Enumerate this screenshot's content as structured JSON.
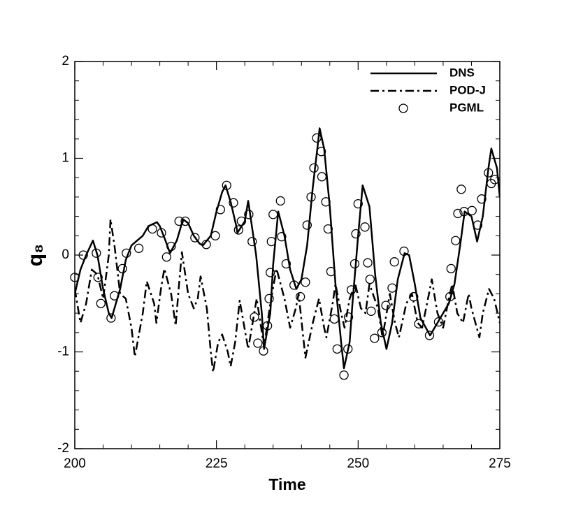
{
  "chart_data": {
    "type": "line",
    "x_label": "Time",
    "y_label": "q₈",
    "xlim": [
      200,
      275
    ],
    "xticks": [
      200,
      225,
      250,
      275
    ],
    "ylim": [
      -2,
      2
    ],
    "yticks": [
      -2,
      -1,
      0,
      1,
      2
    ],
    "legend": "upper right",
    "series": [
      {
        "name": "DNS",
        "color": "#000000",
        "style": "solid",
        "x": [
          200,
          201,
          202,
          203.2,
          204,
          205,
          206,
          206.5,
          208,
          209,
          210,
          211,
          212,
          213,
          214.5,
          215,
          216,
          216.8,
          218,
          219.1,
          220,
          221,
          222,
          222.6,
          224,
          225,
          226,
          226.6,
          227.5,
          228.5,
          228.7,
          230,
          230.6,
          232,
          233,
          233.4,
          234.5,
          235,
          235.9,
          237,
          238,
          239.1,
          240,
          241,
          242,
          243,
          243.2,
          244,
          245,
          246,
          247,
          247.5,
          248.5,
          249,
          250,
          250.8,
          252,
          253,
          254,
          255,
          256,
          257,
          258.2,
          259,
          260,
          261,
          262.7,
          263,
          264,
          265,
          266,
          267,
          268,
          268.8,
          270,
          271,
          272,
          273,
          273.5,
          274.5,
          275
        ],
        "values": [
          -0.4,
          -0.15,
          0.0,
          0.15,
          0.0,
          -0.35,
          -0.6,
          -0.65,
          -0.35,
          -0.05,
          0.1,
          0.15,
          0.2,
          0.3,
          0.34,
          0.3,
          0.15,
          0.02,
          0.15,
          0.37,
          0.33,
          0.2,
          0.12,
          0.1,
          0.2,
          0.45,
          0.65,
          0.72,
          0.55,
          0.3,
          0.23,
          0.35,
          0.56,
          0.0,
          -0.6,
          -0.97,
          -0.6,
          -0.1,
          0.45,
          0.2,
          -0.15,
          -0.35,
          -0.25,
          0.1,
          0.7,
          1.2,
          1.31,
          1.1,
          0.5,
          -0.3,
          -0.9,
          -1.17,
          -0.9,
          -0.5,
          0.2,
          0.72,
          0.5,
          -0.2,
          -0.7,
          -0.97,
          -0.7,
          -0.25,
          0.02,
          0.0,
          -0.3,
          -0.65,
          -0.83,
          -0.8,
          -0.7,
          -0.6,
          -0.5,
          -0.3,
          0.1,
          0.45,
          0.4,
          0.14,
          0.4,
          0.9,
          1.1,
          0.9,
          0.6
        ]
      },
      {
        "name": "POD-J",
        "color": "#000000",
        "style": "dashdot",
        "x": [
          200,
          201,
          202,
          203,
          204,
          205,
          206,
          206.3,
          207,
          208,
          209,
          210,
          210.6,
          212,
          212.7,
          214,
          214.4,
          215.2,
          215.8,
          217,
          217.8,
          218.4,
          218.9,
          220,
          221,
          221.7,
          222.2,
          223.3,
          224,
          224.4,
          225.3,
          226,
          227,
          227.5,
          228.3,
          229.1,
          230.6,
          232.1,
          233.4,
          234.5,
          235.6,
          237,
          238,
          239,
          239.5,
          240.7,
          242,
          243.1,
          244,
          244.4,
          245.5,
          246,
          247,
          247.6,
          248.5,
          249.5,
          250.5,
          251.3,
          252,
          253.5,
          254.3,
          255.6,
          256.5,
          257.2,
          258.5,
          259.5,
          260.5,
          261.3,
          262.5,
          263,
          264,
          265,
          266,
          266.6,
          267.5,
          268.5,
          269.5,
          270,
          271.4,
          272,
          273.1,
          274,
          275
        ],
        "values": [
          -0.35,
          -0.7,
          -0.5,
          -0.15,
          -0.2,
          -0.45,
          0.0,
          0.37,
          0.1,
          -0.4,
          -0.45,
          -0.75,
          -1.05,
          -0.6,
          -0.27,
          -0.5,
          -0.7,
          -0.35,
          -0.14,
          -0.4,
          -0.73,
          -0.3,
          0.03,
          -0.4,
          -0.55,
          -0.45,
          -0.22,
          -0.55,
          -1.0,
          -1.21,
          -0.9,
          -0.82,
          -1.0,
          -1.15,
          -0.9,
          -0.47,
          -0.97,
          -0.45,
          -0.95,
          -0.5,
          -0.14,
          -0.45,
          -0.75,
          -0.55,
          -0.4,
          -1.06,
          -0.7,
          -0.45,
          -0.75,
          -0.85,
          -0.5,
          -0.3,
          -0.6,
          -0.75,
          -0.45,
          -0.3,
          -0.55,
          -0.6,
          -0.3,
          -0.55,
          -0.85,
          -0.4,
          -0.7,
          -0.85,
          -0.5,
          -0.4,
          -0.7,
          -0.75,
          -0.4,
          -0.25,
          -0.6,
          -0.75,
          -0.45,
          -0.3,
          -0.6,
          -0.7,
          -0.4,
          -0.55,
          -0.85,
          -0.6,
          -0.35,
          -0.45,
          -0.7
        ]
      },
      {
        "name": "PGML",
        "color": "#000000",
        "style": "circle",
        "x": [
          200,
          201.5,
          203.8,
          204.1,
          204.6,
          206.4,
          207,
          208.4,
          209.1,
          211.3,
          213.7,
          215.3,
          216.2,
          217,
          218.4,
          219.5,
          221.2,
          223.2,
          224.8,
          225.7,
          226.8,
          228,
          228.9,
          229.4,
          230.7,
          231.3,
          231.7,
          232.3,
          233.3,
          234,
          234.3,
          234.5,
          234.7,
          235,
          236.3,
          236.5,
          237.3,
          238.7,
          239.8,
          240.7,
          241,
          241.7,
          242.2,
          242.7,
          243.5,
          243.6,
          244.3,
          244.7,
          245.2,
          245.8,
          246.3,
          248.2,
          248.3,
          248.8,
          249.4,
          249.6,
          250,
          251.2,
          251.7,
          252.1,
          252.3,
          252.9,
          254.2,
          254.9,
          256,
          256.4,
          258.1,
          259.8,
          260.7,
          262.6,
          264.2,
          266.2,
          266.4,
          267.2,
          267.6,
          268.2,
          268.7,
          270.1,
          271.1,
          271.8,
          273,
          273.5,
          274.1,
          247.5
        ],
        "values": [
          -0.23,
          0.0,
          0.02,
          -0.23,
          -0.5,
          -0.65,
          -0.42,
          -0.14,
          0.02,
          0.07,
          0.27,
          0.23,
          -0.02,
          0.09,
          0.35,
          0.35,
          0.18,
          0.11,
          0.2,
          0.47,
          0.72,
          0.54,
          0.26,
          0.35,
          0.42,
          0.14,
          -0.64,
          -0.91,
          -0.99,
          -0.73,
          -0.45,
          -0.18,
          0.14,
          0.42,
          0.56,
          0.19,
          -0.09,
          -0.31,
          -0.43,
          -0.28,
          0.31,
          0.6,
          0.9,
          1.21,
          1.07,
          0.81,
          0.55,
          0.27,
          -0.17,
          -0.66,
          -0.97,
          -0.97,
          -0.64,
          -0.36,
          -0.09,
          0.22,
          0.53,
          0.29,
          -0.08,
          -0.25,
          -0.58,
          -0.86,
          -0.8,
          -0.52,
          -0.34,
          -0.07,
          0.04,
          -0.43,
          -0.71,
          -0.83,
          -0.69,
          -0.43,
          -0.14,
          0.15,
          0.43,
          0.68,
          0.45,
          0.46,
          0.31,
          0.58,
          0.85,
          0.74,
          0.78,
          -1.24
        ]
      }
    ]
  }
}
